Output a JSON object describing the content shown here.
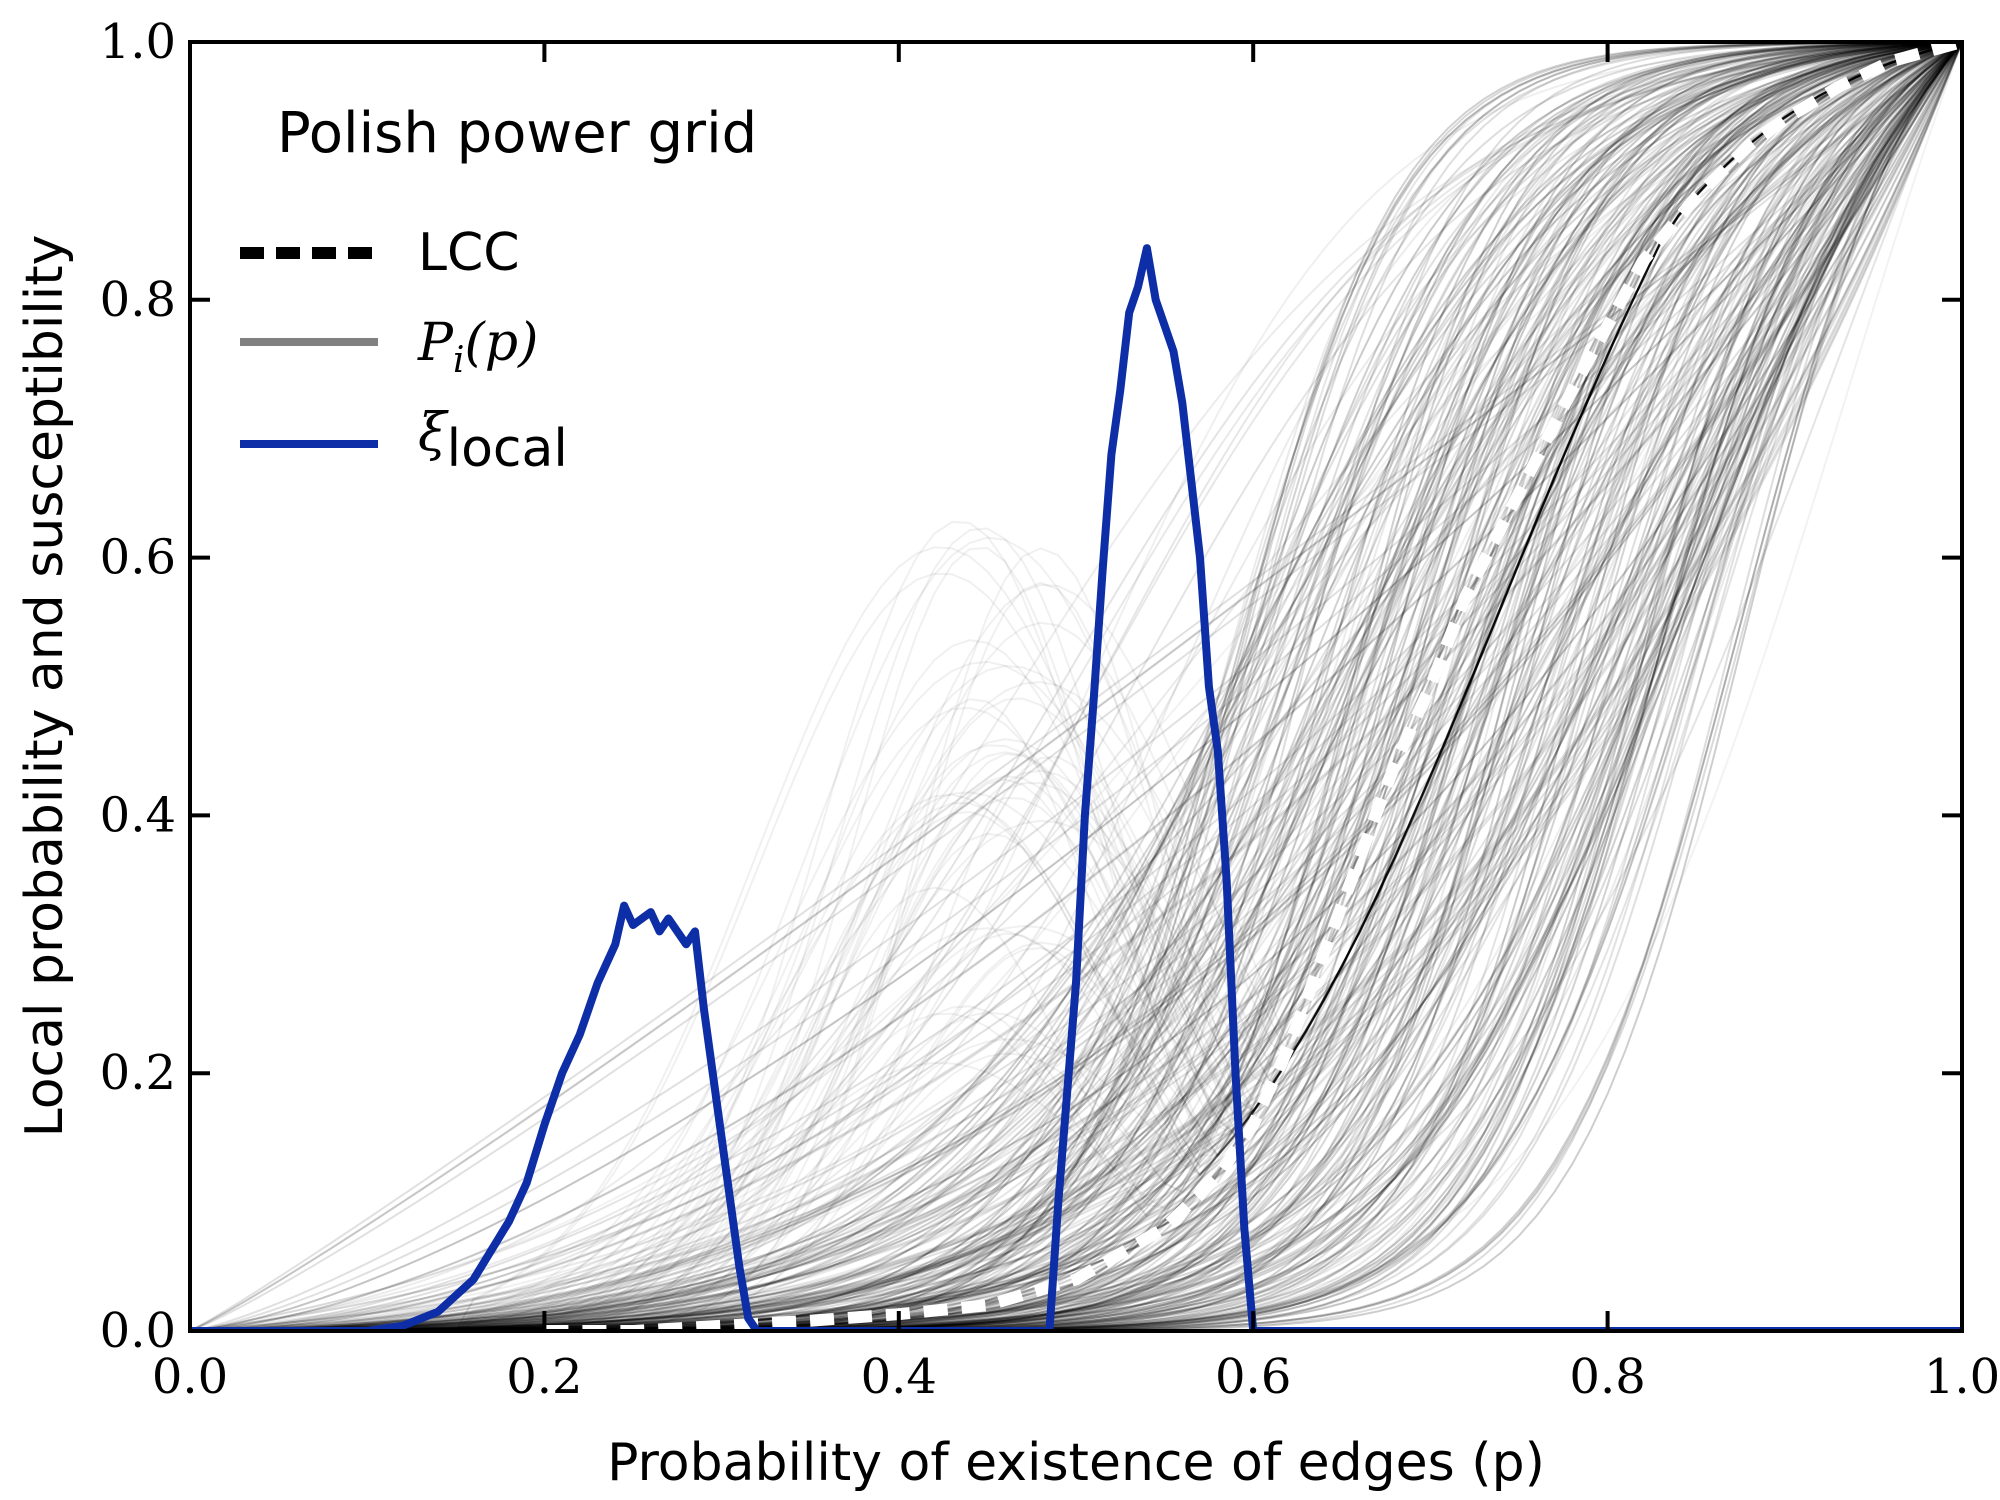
{
  "chart_data": {
    "type": "line",
    "title": "Polish power grid",
    "xlabel": "Probability of existence of edges (p)",
    "ylabel": "Local probability and susceptibility",
    "xlim": [
      0.0,
      1.0
    ],
    "ylim": [
      0.0,
      1.0
    ],
    "xticks": [
      "0.0",
      "0.2",
      "0.4",
      "0.6",
      "0.8",
      "1.0"
    ],
    "yticks": [
      "0.0",
      "0.2",
      "0.4",
      "0.6",
      "0.8",
      "1.0"
    ],
    "grid": false,
    "legend_position": "top-left",
    "legend": {
      "lcc": "LCC",
      "pi_base": "P",
      "pi_sub": "i",
      "pi_arg": "(p)",
      "xi_base": "ξ",
      "xi_sub": "local"
    },
    "colors": {
      "lcc": "#ffffff",
      "lcc_legend": "#000000",
      "pi": "#808080",
      "xi": "#0d2ea6",
      "node_curves": "#000000"
    },
    "series": [
      {
        "name": "LCC",
        "style": "dashed",
        "x": [
          0.2,
          0.25,
          0.3,
          0.35,
          0.4,
          0.45,
          0.5,
          0.55,
          0.58,
          0.6,
          0.62,
          0.65,
          0.68,
          0.7,
          0.72,
          0.75,
          0.78,
          0.8,
          0.82,
          0.85,
          0.88,
          0.9,
          0.93,
          0.96,
          1.0
        ],
        "y": [
          0.0,
          0.0,
          0.004,
          0.008,
          0.013,
          0.02,
          0.04,
          0.08,
          0.12,
          0.16,
          0.22,
          0.33,
          0.44,
          0.5,
          0.57,
          0.65,
          0.73,
          0.78,
          0.83,
          0.88,
          0.92,
          0.94,
          0.965,
          0.985,
          1.0
        ]
      },
      {
        "name": "ξ_local",
        "style": "solid",
        "x": [
          0.0,
          0.1,
          0.12,
          0.14,
          0.16,
          0.18,
          0.19,
          0.2,
          0.21,
          0.22,
          0.23,
          0.24,
          0.245,
          0.25,
          0.26,
          0.265,
          0.27,
          0.28,
          0.285,
          0.29,
          0.3,
          0.31,
          0.315,
          0.32,
          0.48,
          0.485,
          0.49,
          0.5,
          0.505,
          0.51,
          0.515,
          0.52,
          0.525,
          0.53,
          0.535,
          0.54,
          0.545,
          0.55,
          0.555,
          0.56,
          0.565,
          0.57,
          0.575,
          0.58,
          0.585,
          0.59,
          0.595,
          0.6,
          0.61,
          1.0
        ],
        "y": [
          0.0,
          0.0,
          0.004,
          0.015,
          0.04,
          0.085,
          0.115,
          0.16,
          0.2,
          0.23,
          0.27,
          0.3,
          0.33,
          0.315,
          0.325,
          0.31,
          0.32,
          0.3,
          0.31,
          0.25,
          0.15,
          0.05,
          0.01,
          0.0,
          0.0,
          0.0,
          0.1,
          0.27,
          0.4,
          0.49,
          0.59,
          0.68,
          0.73,
          0.79,
          0.81,
          0.84,
          0.8,
          0.78,
          0.76,
          0.72,
          0.66,
          0.6,
          0.5,
          0.45,
          0.35,
          0.2,
          0.08,
          0.0,
          0.0,
          0.0
        ]
      }
    ]
  }
}
